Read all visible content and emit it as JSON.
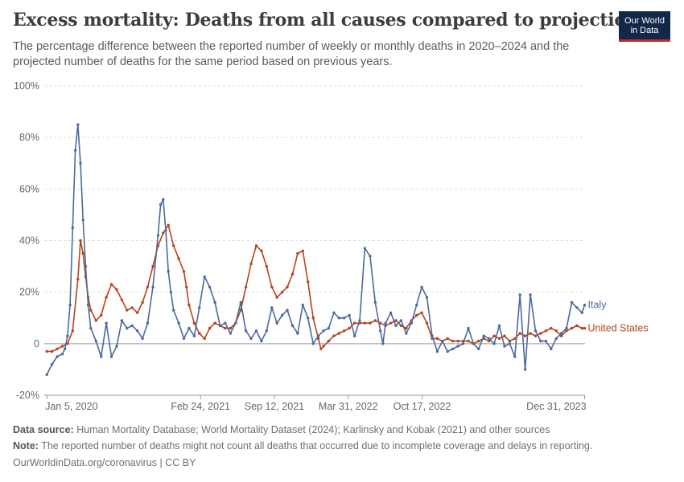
{
  "title": "Excess mortality: Deaths from all causes compared to projection",
  "subtitle": "The percentage difference between the reported number of weekly or monthly deaths in 2020–2024 and the projected number of deaths for the same period based on previous years.",
  "logo": {
    "line1": "Our World",
    "line2": "in Data",
    "bg": "#12284a",
    "accent": "#c22a2a"
  },
  "footer": {
    "source_label": "Data source:",
    "source_text": "Human Mortality Database; World Mortality Dataset (2024); Karlinsky and Kobak (2021) and other sources",
    "note_label": "Note:",
    "note_text": "The reported number of deaths might not count all deaths that occurred due to incomplete coverage and delays in reporting.",
    "credit": "OurWorldinData.org/coronavirus | CC BY"
  },
  "chart_data": {
    "type": "line",
    "title": "Excess mortality: Deaths from all causes compared to projection",
    "ylim": [
      -20,
      100
    ],
    "yticks": [
      -20,
      0,
      20,
      40,
      60,
      80,
      100
    ],
    "ytick_labels": [
      "-20%",
      "0",
      "20%",
      "40%",
      "60%",
      "80%",
      "100%"
    ],
    "xlim": [
      "2019-12-29",
      "2024-01-01"
    ],
    "xticks": [
      "2020-01-05",
      "2021-02-24",
      "2021-09-12",
      "2022-03-31",
      "2022-10-17",
      "2023-12-31"
    ],
    "xtick_labels": [
      "Jan 5, 2020",
      "Feb 24, 2021",
      "Sep 12, 2021",
      "Mar 31, 2022",
      "Oct 17, 2022",
      "Dec 31, 2023"
    ],
    "grid": true,
    "legend": "right",
    "series": [
      {
        "name": "Italy",
        "color": "#4c6a9c",
        "x": [
          "2020-01-05",
          "2020-01-19",
          "2020-02-02",
          "2020-02-16",
          "2020-02-23",
          "2020-03-01",
          "2020-03-08",
          "2020-03-15",
          "2020-03-22",
          "2020-03-29",
          "2020-04-05",
          "2020-04-12",
          "2020-04-19",
          "2020-04-26",
          "2020-05-03",
          "2020-05-17",
          "2020-05-31",
          "2020-06-14",
          "2020-06-28",
          "2020-07-12",
          "2020-07-26",
          "2020-08-09",
          "2020-08-23",
          "2020-09-06",
          "2020-09-20",
          "2020-10-04",
          "2020-10-18",
          "2020-11-01",
          "2020-11-08",
          "2020-11-15",
          "2020-11-22",
          "2020-11-29",
          "2020-12-06",
          "2020-12-13",
          "2020-12-27",
          "2021-01-10",
          "2021-01-24",
          "2021-02-07",
          "2021-02-21",
          "2021-03-07",
          "2021-03-21",
          "2021-04-04",
          "2021-04-18",
          "2021-05-02",
          "2021-05-16",
          "2021-05-30",
          "2021-06-13",
          "2021-06-27",
          "2021-07-11",
          "2021-07-25",
          "2021-08-08",
          "2021-08-22",
          "2021-09-05",
          "2021-09-19",
          "2021-10-03",
          "2021-10-17",
          "2021-10-31",
          "2021-11-14",
          "2021-11-28",
          "2021-12-12",
          "2021-12-26",
          "2022-01-09",
          "2022-01-23",
          "2022-02-06",
          "2022-02-20",
          "2022-03-06",
          "2022-03-20",
          "2022-04-03",
          "2022-04-17",
          "2022-05-01",
          "2022-05-15",
          "2022-05-29",
          "2022-06-12",
          "2022-06-26",
          "2022-07-03",
          "2022-07-10",
          "2022-07-24",
          "2022-08-07",
          "2022-08-21",
          "2022-09-04",
          "2022-09-18",
          "2022-10-02",
          "2022-10-16",
          "2022-10-30",
          "2022-11-13",
          "2022-11-27",
          "2022-12-11",
          "2022-12-25",
          "2023-01-08",
          "2023-01-22",
          "2023-02-05",
          "2023-02-19",
          "2023-03-05",
          "2023-03-19",
          "2023-04-02",
          "2023-04-16",
          "2023-04-30",
          "2023-05-14",
          "2023-05-28",
          "2023-06-11",
          "2023-06-25",
          "2023-07-09",
          "2023-07-23",
          "2023-08-06",
          "2023-08-20",
          "2023-09-03",
          "2023-09-17",
          "2023-10-01",
          "2023-10-15",
          "2023-10-29",
          "2023-11-12",
          "2023-11-26",
          "2023-12-10",
          "2023-12-24",
          "2023-12-31"
        ],
        "values": [
          -12,
          -8,
          -5,
          -4,
          -2,
          3,
          15,
          45,
          75,
          85,
          70,
          48,
          30,
          15,
          6,
          1,
          -5,
          8,
          -5,
          -1,
          9,
          6,
          7,
          5,
          2,
          8,
          22,
          42,
          54,
          56,
          44,
          28,
          20,
          13,
          8,
          2,
          6,
          3,
          14,
          26,
          22,
          16,
          7,
          8,
          4,
          8,
          16,
          5,
          2,
          5,
          1,
          5,
          14,
          8,
          11,
          13,
          7,
          4,
          15,
          10,
          0,
          3,
          5,
          6,
          12,
          10,
          10,
          11,
          3,
          9,
          37,
          34,
          16,
          5,
          0,
          8,
          12,
          7,
          9,
          4,
          8,
          15,
          22,
          18,
          3,
          -3,
          1,
          -3,
          -2,
          -1,
          0,
          6,
          0,
          -2,
          3,
          2,
          0,
          7,
          -1,
          0,
          -5,
          19,
          -10,
          19,
          5,
          1,
          1,
          -2,
          2,
          4,
          6,
          16,
          14,
          12,
          15
        ]
      },
      {
        "name": "United States",
        "color": "#b5441e",
        "x": [
          "2020-01-05",
          "2020-01-19",
          "2020-02-02",
          "2020-02-16",
          "2020-03-01",
          "2020-03-15",
          "2020-03-29",
          "2020-04-05",
          "2020-04-12",
          "2020-04-19",
          "2020-04-26",
          "2020-05-03",
          "2020-05-17",
          "2020-05-31",
          "2020-06-14",
          "2020-06-28",
          "2020-07-12",
          "2020-07-26",
          "2020-08-09",
          "2020-08-23",
          "2020-09-06",
          "2020-09-20",
          "2020-10-04",
          "2020-10-18",
          "2020-11-01",
          "2020-11-15",
          "2020-11-29",
          "2020-12-13",
          "2020-12-27",
          "2021-01-10",
          "2021-01-17",
          "2021-01-24",
          "2021-02-07",
          "2021-02-21",
          "2021-03-07",
          "2021-03-21",
          "2021-04-04",
          "2021-04-18",
          "2021-05-02",
          "2021-05-16",
          "2021-05-30",
          "2021-06-13",
          "2021-06-27",
          "2021-07-11",
          "2021-07-25",
          "2021-08-08",
          "2021-08-22",
          "2021-09-05",
          "2021-09-19",
          "2021-10-03",
          "2021-10-17",
          "2021-10-31",
          "2021-11-14",
          "2021-11-28",
          "2021-12-12",
          "2021-12-26",
          "2022-01-09",
          "2022-01-16",
          "2022-01-23",
          "2022-02-06",
          "2022-02-20",
          "2022-03-06",
          "2022-03-20",
          "2022-04-03",
          "2022-04-17",
          "2022-05-01",
          "2022-05-15",
          "2022-05-29",
          "2022-06-12",
          "2022-06-26",
          "2022-07-10",
          "2022-07-24",
          "2022-08-07",
          "2022-08-21",
          "2022-09-04",
          "2022-09-18",
          "2022-10-02",
          "2022-10-16",
          "2022-10-30",
          "2022-11-13",
          "2022-11-27",
          "2022-12-11",
          "2022-12-25",
          "2023-01-08",
          "2023-01-22",
          "2023-02-05",
          "2023-02-19",
          "2023-03-05",
          "2023-03-19",
          "2023-04-02",
          "2023-04-16",
          "2023-04-30",
          "2023-05-14",
          "2023-05-28",
          "2023-06-11",
          "2023-06-25",
          "2023-07-09",
          "2023-07-23",
          "2023-08-06",
          "2023-08-20",
          "2023-09-03",
          "2023-09-17",
          "2023-10-01",
          "2023-10-15",
          "2023-10-29",
          "2023-11-12",
          "2023-11-26",
          "2023-12-10",
          "2023-12-24",
          "2023-12-31"
        ],
        "values": [
          -3,
          -3,
          -2,
          -1,
          0,
          5,
          25,
          40,
          35,
          26,
          18,
          13,
          9,
          11,
          18,
          23,
          21,
          17,
          13,
          14,
          12,
          16,
          22,
          30,
          38,
          43,
          46,
          38,
          33,
          28,
          22,
          15,
          8,
          4,
          2,
          6,
          8,
          7,
          6,
          6,
          8,
          13,
          22,
          31,
          38,
          36,
          30,
          22,
          18,
          20,
          22,
          27,
          35,
          36,
          24,
          10,
          2,
          -2,
          -1,
          1,
          3,
          4,
          5,
          6,
          8,
          8,
          8,
          8,
          9,
          8,
          7,
          8,
          9,
          7,
          6,
          9,
          11,
          12,
          8,
          2,
          2,
          1,
          2,
          1,
          1,
          1,
          1,
          0,
          1,
          2,
          1,
          3,
          2,
          3,
          1,
          2,
          4,
          3,
          4,
          3,
          4,
          5,
          6,
          5,
          3,
          5,
          6,
          7,
          6,
          6
        ]
      }
    ]
  }
}
